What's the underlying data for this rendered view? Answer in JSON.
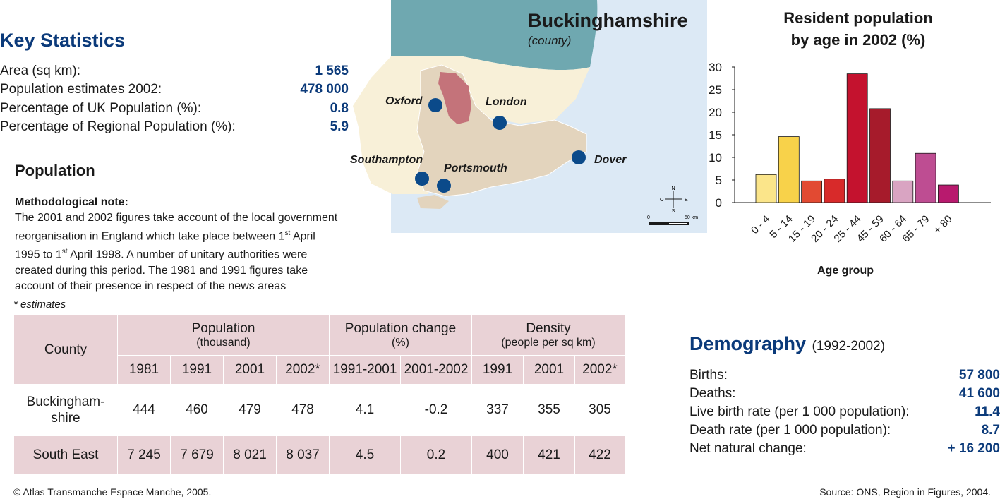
{
  "key_stats": {
    "title": "Key Statistics",
    "rows": [
      {
        "label": "Area (sq km):",
        "value": "1 565"
      },
      {
        "label": "Population estimates 2002:",
        "value": "478 000"
      },
      {
        "label": "Percentage of UK Population (%):",
        "value": "0.8"
      },
      {
        "label": "Percentage of Regional Population (%):",
        "value": "5.9"
      }
    ]
  },
  "population": {
    "title": "Population",
    "note_title": "Methodological note:",
    "note_l1": "The 2001 and 2002 figures take account of the local government",
    "note_l2a": "reorganisation in England which take place between 1",
    "note_l2sup": "st",
    "note_l2b": " April",
    "note_l3a": "1995 to 1",
    "note_l3sup": "st",
    "note_l3b": " April 1998. A number of unitary authorities were",
    "note_l4": "created during this period. The 1981 and 1991 figures take",
    "note_l5": "account of their presence in respect of the news areas",
    "estimates_note": "* estimates"
  },
  "table": {
    "col_county": "County",
    "group_pop": "Population",
    "group_pop_sub": "(thousand)",
    "group_change": "Population change",
    "group_change_sub": "(%)",
    "group_density": "Density",
    "group_density_sub": "(people per sq km)",
    "years": [
      "1981",
      "1991",
      "2001",
      "2002*",
      "1991-2001",
      "2001-2002",
      "1991",
      "2001",
      "2002*"
    ],
    "rows": [
      {
        "county_l1": "Buckingham-",
        "county_l2": "shire",
        "values": [
          "444",
          "460",
          "479",
          "478",
          "4.1",
          "-0.2",
          "337",
          "355",
          "305"
        ]
      },
      {
        "county_l1": "South East",
        "county_l2": "",
        "values": [
          "7 245",
          "7 679",
          "8 021",
          "8 037",
          "4.5",
          "0.2",
          "400",
          "421",
          "422"
        ]
      }
    ]
  },
  "map": {
    "title": "Buckinghamshire",
    "subtitle": "(county)",
    "cities": [
      "Oxford",
      "London",
      "Southampton",
      "Portsmouth",
      "Dover"
    ],
    "scale_zero": "0",
    "scale_max": "50 km",
    "compass": {
      "n": "N",
      "s": "S",
      "e": "E",
      "w": "O"
    },
    "colors": {
      "sea_north": "#6fa8b0",
      "sea": "#dce9f5",
      "region": "#e3d4bd",
      "land": "#f8f0d8",
      "county": "#c4737a",
      "city": "#0b4a8a"
    }
  },
  "chart_data": {
    "type": "bar",
    "title_l1": "Resident population",
    "title_l2": "by age in 2002 (%)",
    "xlabel": "Age group",
    "ylabel": "",
    "ylim": [
      0,
      30
    ],
    "yticks": [
      "0",
      "5",
      "10",
      "15",
      "20",
      "25",
      "30"
    ],
    "categories": [
      "0 - 4",
      "5 - 14",
      "15 - 19",
      "20 - 24",
      "25 - 44",
      "45 - 59",
      "60 - 64",
      "65 - 79",
      "+ 80"
    ],
    "values": [
      6.2,
      14.6,
      4.8,
      5.2,
      28.5,
      20.8,
      4.8,
      10.9,
      3.9
    ],
    "colors": [
      "#fbe58a",
      "#f8d24a",
      "#e24a32",
      "#d82a2a",
      "#c4122e",
      "#a61b2b",
      "#d9a4c2",
      "#be4d92",
      "#b81a6e"
    ],
    "grid": false
  },
  "demography": {
    "title": "Demography",
    "period": "(1992-2002)",
    "rows": [
      {
        "label": "Births:",
        "value": "57 800"
      },
      {
        "label": "Deaths:",
        "value": "41 600"
      },
      {
        "label": "Live birth rate (per 1 000 population):",
        "value": "11.4"
      },
      {
        "label": "Death rate (per 1 000 population):",
        "value": "8.7"
      },
      {
        "label": "Net natural change:",
        "value": "+ 16 200"
      }
    ]
  },
  "footer": {
    "copyright": "© Atlas Transmanche Espace Manche, 2005.",
    "source": "Source: ONS, Region in Figures, 2004."
  }
}
